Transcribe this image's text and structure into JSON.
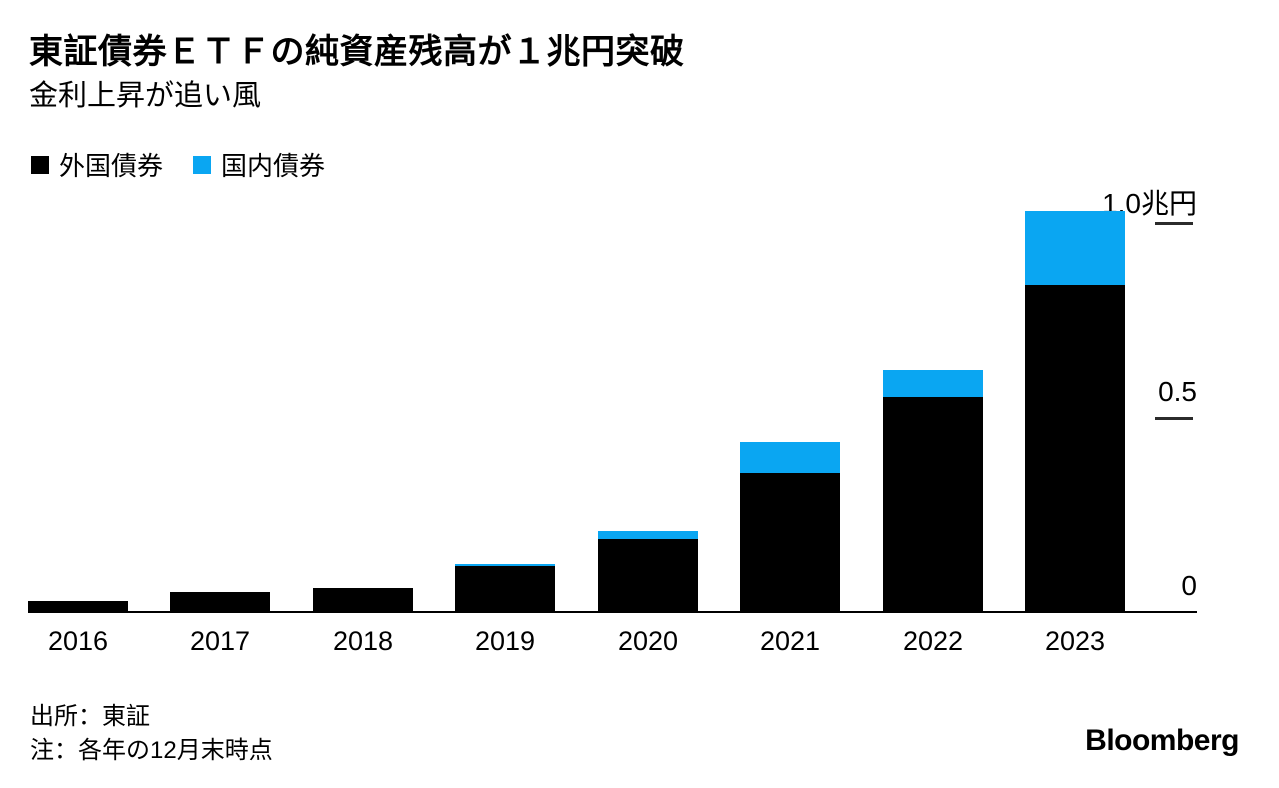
{
  "page": {
    "background": "#ffffff"
  },
  "chart_data": {
    "type": "bar",
    "stacked": true,
    "title": "東証債券ＥＴＦの純資産残高が１兆円突破",
    "subtitle": "金利上昇が追い風",
    "unit": "兆円",
    "categories": [
      "2016",
      "2017",
      "2018",
      "2019",
      "2020",
      "2021",
      "2022",
      "2023"
    ],
    "series": [
      {
        "name": "外国債券",
        "color": "#000000",
        "values": [
          0.03,
          0.055,
          0.065,
          0.12,
          0.19,
          0.36,
          0.555,
          0.84
        ]
      },
      {
        "name": "国内債券",
        "color": "#0AA6F2",
        "values": [
          0.0,
          0.0,
          0.0,
          0.005,
          0.02,
          0.08,
          0.07,
          0.19
        ]
      }
    ],
    "totals": [
      0.03,
      0.055,
      0.065,
      0.125,
      0.21,
      0.44,
      0.625,
      1.03
    ],
    "y_axis": {
      "range": [
        0,
        1.05
      ],
      "ticks": [
        {
          "value": 1.0,
          "label": "1.0兆円"
        },
        {
          "value": 0.5,
          "label": "0.5"
        },
        {
          "value": 0.0,
          "label": "0"
        }
      ],
      "side": "right"
    },
    "legend_position": "top-left",
    "grid": false
  },
  "footer": {
    "source": "出所：東証",
    "note": "注：各年の12月末時点",
    "brand": "Bloomberg"
  }
}
